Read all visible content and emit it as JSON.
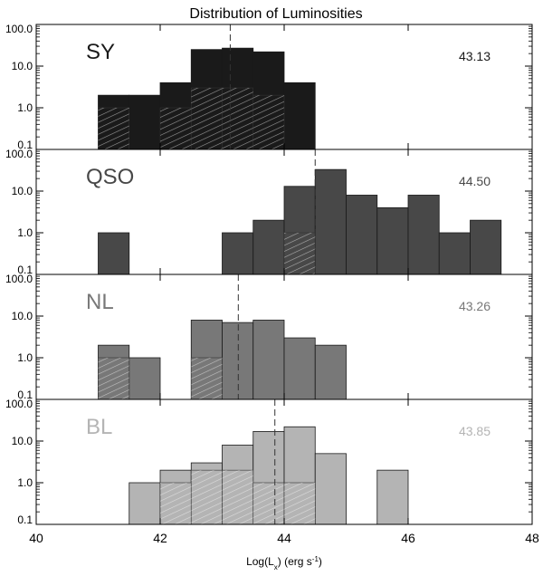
{
  "chart_data": {
    "type": "bar",
    "title": "Distribution of Luminosities",
    "xlabel": "Log(L_x) (erg s^-1)",
    "ylabel": "",
    "xlim": [
      40,
      48
    ],
    "ylim": [
      0.1,
      100
    ],
    "y_scale": "log",
    "x_ticks": [
      "40",
      "42",
      "44",
      "46",
      "48"
    ],
    "y_ticks": [
      "0.1",
      "1.0",
      "10.0",
      "100.0"
    ],
    "bin_width": 0.5,
    "grid": false,
    "panels": [
      {
        "name": "SY",
        "median": 43.13,
        "median_label": "43.13",
        "color": "#1a1a1a",
        "total": [
          {
            "x0": 41.0,
            "y": 2
          },
          {
            "x0": 41.5,
            "y": 2
          },
          {
            "x0": 42.0,
            "y": 4
          },
          {
            "x0": 42.5,
            "y": 25
          },
          {
            "x0": 43.0,
            "y": 27
          },
          {
            "x0": 43.5,
            "y": 22
          },
          {
            "x0": 44.0,
            "y": 4
          }
        ],
        "hatched": [
          {
            "x0": 41.0,
            "y": 1
          },
          {
            "x0": 42.0,
            "y": 1
          },
          {
            "x0": 42.5,
            "y": 3
          },
          {
            "x0": 43.0,
            "y": 3
          },
          {
            "x0": 43.5,
            "y": 2
          }
        ]
      },
      {
        "name": "QSO",
        "median": 44.5,
        "median_label": "44.50",
        "color": "#484848",
        "total": [
          {
            "x0": 41.0,
            "y": 1
          },
          {
            "x0": 43.0,
            "y": 1
          },
          {
            "x0": 43.5,
            "y": 2
          },
          {
            "x0": 44.0,
            "y": 13
          },
          {
            "x0": 44.5,
            "y": 33
          },
          {
            "x0": 45.0,
            "y": 8
          },
          {
            "x0": 45.5,
            "y": 4
          },
          {
            "x0": 46.0,
            "y": 8
          },
          {
            "x0": 46.5,
            "y": 1
          },
          {
            "x0": 47.0,
            "y": 2
          }
        ],
        "hatched": [
          {
            "x0": 44.0,
            "y": 1
          }
        ]
      },
      {
        "name": "NL",
        "median": 43.26,
        "median_label": "43.26",
        "color": "#787878",
        "total": [
          {
            "x0": 41.0,
            "y": 2
          },
          {
            "x0": 41.5,
            "y": 1
          },
          {
            "x0": 42.5,
            "y": 8
          },
          {
            "x0": 43.0,
            "y": 7
          },
          {
            "x0": 43.5,
            "y": 8
          },
          {
            "x0": 44.0,
            "y": 3
          },
          {
            "x0": 44.5,
            "y": 2
          }
        ],
        "hatched": [
          {
            "x0": 41.0,
            "y": 1
          },
          {
            "x0": 42.5,
            "y": 1
          }
        ]
      },
      {
        "name": "BL",
        "median": 43.85,
        "median_label": "43.85",
        "color": "#b4b4b4",
        "total": [
          {
            "x0": 41.5,
            "y": 1
          },
          {
            "x0": 42.0,
            "y": 2
          },
          {
            "x0": 42.5,
            "y": 3
          },
          {
            "x0": 43.0,
            "y": 8
          },
          {
            "x0": 43.5,
            "y": 17
          },
          {
            "x0": 44.0,
            "y": 22
          },
          {
            "x0": 44.5,
            "y": 5
          },
          {
            "x0": 45.5,
            "y": 2
          }
        ],
        "hatched": [
          {
            "x0": 42.0,
            "y": 1
          },
          {
            "x0": 42.5,
            "y": 2
          },
          {
            "x0": 43.0,
            "y": 2
          },
          {
            "x0": 43.5,
            "y": 1
          },
          {
            "x0": 44.0,
            "y": 1
          }
        ]
      }
    ]
  }
}
